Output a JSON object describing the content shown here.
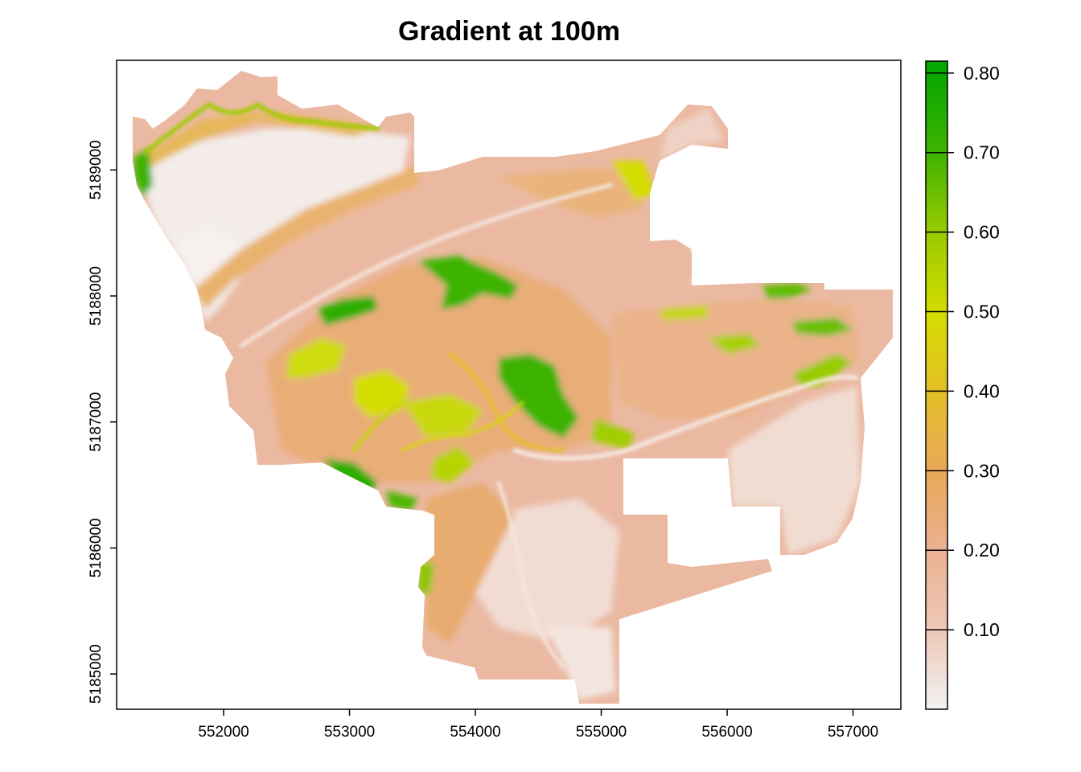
{
  "chart_data": {
    "type": "heatmap",
    "title": "Gradient at 100m",
    "xlabel": "",
    "ylabel": "",
    "xlim": [
      551150,
      557380
    ],
    "ylim": [
      5184720,
      5189870
    ],
    "x_ticks": [
      "552000",
      "553000",
      "554000",
      "555000",
      "556000",
      "557000"
    ],
    "y_ticks": [
      "5185000",
      "5186000",
      "5187000",
      "5188000",
      "5189000"
    ],
    "x_tick_values": [
      552000,
      553000,
      554000,
      555000,
      556000,
      557000
    ],
    "y_tick_values": [
      5185000,
      5186000,
      5187000,
      5188000,
      5189000
    ],
    "colorbar": {
      "ticks": [
        "0.10",
        "0.20",
        "0.30",
        "0.40",
        "0.50",
        "0.60",
        "0.70",
        "0.80"
      ],
      "tick_values": [
        0.1,
        0.2,
        0.3,
        0.4,
        0.5,
        0.6,
        0.7,
        0.8
      ],
      "range": [
        0.0,
        0.815
      ],
      "colors": [
        "#f2f2f2",
        "#eec8b8",
        "#ebb090",
        "#e8a858",
        "#e3c027",
        "#d5dc00",
        "#96ca00",
        "#3db300",
        "#00a600"
      ]
    },
    "legend_placement": "right",
    "grid": false
  }
}
